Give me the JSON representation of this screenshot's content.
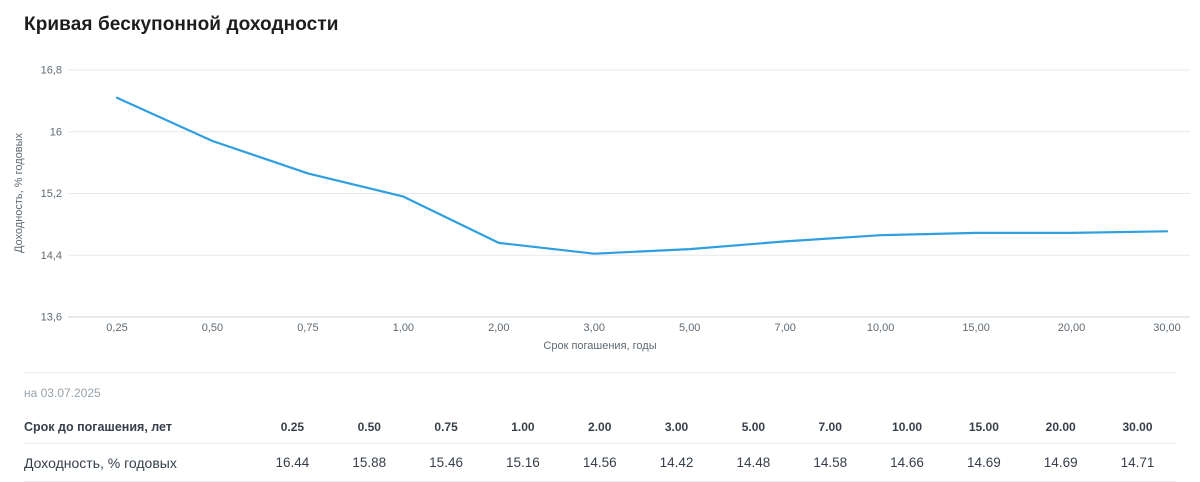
{
  "page": {
    "title": "Кривая бескупонной доходности",
    "note": "на 03.07.2025"
  },
  "colors": {
    "line": "#2f9fe0",
    "grid": "#e9e9e9",
    "axis_line": "#ccd6de",
    "tick_text": "#5f6a73",
    "divider": "#e8eaec",
    "title_text": "#1d1d1f",
    "table_text": "#37404a",
    "note_text": "#98a2aa"
  },
  "chart_data": {
    "type": "line",
    "title": "Кривая бескупонной доходности",
    "categories": [
      "0,25",
      "0,50",
      "0,75",
      "1,00",
      "2,00",
      "3,00",
      "5,00",
      "7,00",
      "10,00",
      "15,00",
      "20,00",
      "30,00"
    ],
    "x_numeric": [
      0.25,
      0.5,
      0.75,
      1.0,
      2.0,
      3.0,
      5.0,
      7.0,
      10.0,
      15.0,
      20.0,
      30.0
    ],
    "series": [
      {
        "name": "Доходность, % годовых",
        "values": [
          16.44,
          15.88,
          15.46,
          15.16,
          14.56,
          14.42,
          14.48,
          14.58,
          14.66,
          14.69,
          14.69,
          14.71
        ]
      }
    ],
    "xlabel": "Срок погашения, годы",
    "ylabel": "Доходность, % годовых",
    "ylim": [
      13.6,
      16.8
    ],
    "yticks": [
      {
        "value": 16.8,
        "label": "16,8"
      },
      {
        "value": 16.0,
        "label": "16"
      },
      {
        "value": 15.2,
        "label": "15,2"
      },
      {
        "value": 14.4,
        "label": "14,4"
      },
      {
        "value": 13.6,
        "label": "13,6"
      }
    ],
    "grid": "horizontal",
    "legend_position": "none",
    "line_color": "#2f9fe0"
  },
  "table": {
    "header_label": "Срок до погашения, лет",
    "header_values": [
      "0.25",
      "0.50",
      "0.75",
      "1.00",
      "2.00",
      "3.00",
      "5.00",
      "7.00",
      "10.00",
      "15.00",
      "20.00",
      "30.00"
    ],
    "row_label": "Доходность, % годовых",
    "row_values": [
      "16.44",
      "15.88",
      "15.46",
      "15.16",
      "14.56",
      "14.42",
      "14.48",
      "14.58",
      "14.66",
      "14.69",
      "14.69",
      "14.71"
    ]
  }
}
